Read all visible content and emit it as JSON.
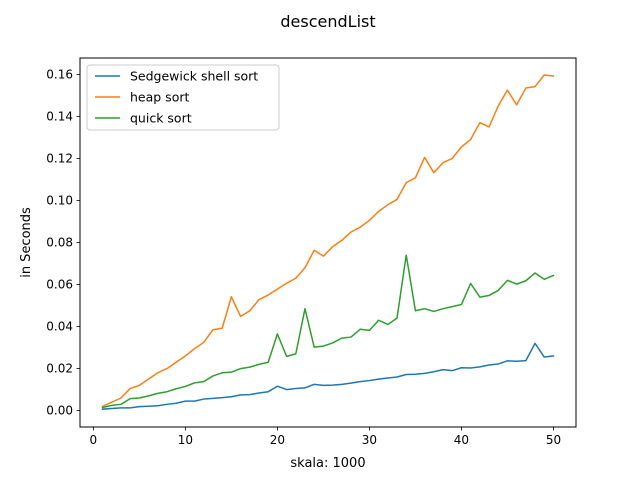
{
  "chart_data": {
    "type": "line",
    "title": "descendList",
    "xlabel": "skala: 1000",
    "ylabel": "in Seconds",
    "xlim": [
      -1.45,
      52.45
    ],
    "ylim": [
      -0.0078,
      0.1678
    ],
    "xticks": [
      0,
      10,
      20,
      30,
      40,
      50
    ],
    "xtick_labels": [
      "0",
      "10",
      "20",
      "30",
      "40",
      "50"
    ],
    "yticks": [
      0.0,
      0.02,
      0.04,
      0.06,
      0.08,
      0.1,
      0.12,
      0.14,
      0.16
    ],
    "ytick_labels": [
      "0.00",
      "0.02",
      "0.04",
      "0.06",
      "0.08",
      "0.10",
      "0.12",
      "0.14",
      "0.16"
    ],
    "grid": false,
    "legend_position": "upper-left",
    "x": [
      1,
      2,
      3,
      4,
      5,
      6,
      7,
      8,
      9,
      10,
      11,
      12,
      13,
      14,
      15,
      16,
      17,
      18,
      19,
      20,
      21,
      22,
      23,
      24,
      25,
      26,
      27,
      28,
      29,
      30,
      31,
      32,
      33,
      34,
      35,
      36,
      37,
      38,
      39,
      40,
      41,
      42,
      43,
      44,
      45,
      46,
      47,
      48,
      49,
      50
    ],
    "series": [
      {
        "name": "Sedgewick shell sort",
        "color": "#1f77b4",
        "values": [
          0.0007,
          0.001,
          0.0013,
          0.0013,
          0.0019,
          0.0021,
          0.0023,
          0.003,
          0.0035,
          0.0045,
          0.0045,
          0.0055,
          0.0058,
          0.0062,
          0.0066,
          0.0075,
          0.0076,
          0.0084,
          0.009,
          0.0116,
          0.01,
          0.0105,
          0.0108,
          0.0125,
          0.012,
          0.0121,
          0.0125,
          0.0131,
          0.0138,
          0.0143,
          0.015,
          0.0155,
          0.016,
          0.0172,
          0.0173,
          0.0177,
          0.0185,
          0.0195,
          0.019,
          0.0204,
          0.0203,
          0.0208,
          0.0217,
          0.0222,
          0.0237,
          0.0235,
          0.0238,
          0.032,
          0.0255,
          0.026
        ]
      },
      {
        "name": "heap sort",
        "color": "#ff7f0e",
        "values": [
          0.002,
          0.004,
          0.006,
          0.0105,
          0.012,
          0.015,
          0.018,
          0.02,
          0.023,
          0.026,
          0.0295,
          0.0325,
          0.0385,
          0.0392,
          0.0542,
          0.0448,
          0.0475,
          0.0528,
          0.055,
          0.0578,
          0.0606,
          0.063,
          0.068,
          0.0763,
          0.0735,
          0.078,
          0.081,
          0.085,
          0.0873,
          0.0905,
          0.0948,
          0.098,
          0.1005,
          0.1085,
          0.1108,
          0.1205,
          0.1132,
          0.118,
          0.12,
          0.1255,
          0.129,
          0.137,
          0.135,
          0.145,
          0.1525,
          0.1455,
          0.1535,
          0.1542,
          0.1597,
          0.1592
        ]
      },
      {
        "name": "quick sort",
        "color": "#2ca02c",
        "values": [
          0.0015,
          0.0025,
          0.003,
          0.0057,
          0.006,
          0.007,
          0.0082,
          0.009,
          0.0104,
          0.0115,
          0.0132,
          0.0138,
          0.0165,
          0.018,
          0.0183,
          0.02,
          0.0207,
          0.022,
          0.023,
          0.0365,
          0.0258,
          0.027,
          0.0485,
          0.0302,
          0.0307,
          0.0322,
          0.0345,
          0.035,
          0.0387,
          0.0382,
          0.043,
          0.041,
          0.044,
          0.074,
          0.0475,
          0.0485,
          0.0472,
          0.0485,
          0.0495,
          0.0505,
          0.0605,
          0.054,
          0.0548,
          0.0572,
          0.062,
          0.0602,
          0.0618,
          0.0655,
          0.0625,
          0.0643
        ]
      }
    ]
  }
}
